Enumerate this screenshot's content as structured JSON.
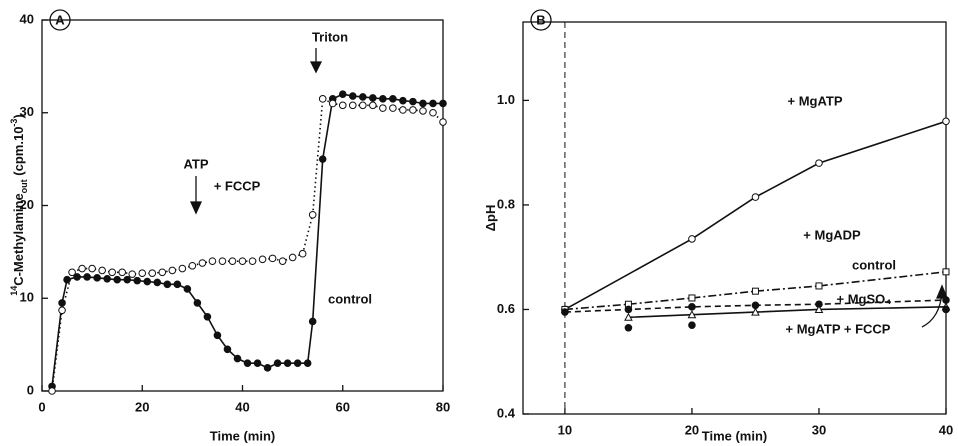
{
  "chart_data": [
    {
      "type": "line",
      "panel": "A",
      "ylabel": [
        "14",
        "C-Methylamine",
        "out",
        " (cpm.10",
        "-3",
        ")"
      ],
      "ylabel_shift": [
        "super",
        "normal",
        "sub",
        "normal",
        "super",
        "normal"
      ],
      "xlabel": "Time (min)",
      "xlim": [
        0,
        80
      ],
      "xticks": [
        0,
        20,
        40,
        60,
        80
      ],
      "ylim": [
        0,
        40
      ],
      "yticks": [
        0,
        10,
        20,
        30,
        40
      ],
      "annotations": [
        "Triton",
        "ATP",
        "+ FCCP",
        "control"
      ],
      "series": [
        {
          "marker": "filled-circle",
          "line": "solid",
          "color": "#111",
          "x": [
            2,
            4,
            5,
            7,
            9,
            11,
            13,
            15,
            17,
            19,
            21,
            23,
            25,
            27,
            29,
            31,
            33,
            35,
            37,
            39,
            41,
            43,
            45,
            47,
            49,
            51,
            53,
            54,
            56,
            58,
            60,
            62,
            64,
            66,
            68,
            70,
            72,
            74,
            76,
            78,
            80
          ],
          "values": [
            0.5,
            9.5,
            12,
            12.3,
            12.3,
            12.2,
            12.1,
            12,
            12,
            11.9,
            11.8,
            11.7,
            11.5,
            11.5,
            11,
            9.5,
            8,
            6,
            4.5,
            3.5,
            3,
            3,
            2.5,
            3,
            3,
            3,
            3,
            7.5,
            25,
            31.5,
            32,
            31.8,
            31.7,
            31.6,
            31.5,
            31.5,
            31.3,
            31.2,
            31,
            31,
            31
          ]
        },
        {
          "marker": "open-circle",
          "line": "dotted",
          "color": "#111",
          "x": [
            2,
            4,
            6,
            8,
            10,
            12,
            14,
            16,
            18,
            20,
            22,
            24,
            26,
            28,
            30,
            32,
            34,
            36,
            38,
            40,
            42,
            44,
            46,
            48,
            50,
            52,
            54,
            56,
            58,
            60,
            62,
            64,
            66,
            68,
            70,
            72,
            74,
            76,
            78,
            80
          ],
          "values": [
            0,
            8.7,
            12.8,
            13.2,
            13.2,
            13,
            12.8,
            12.8,
            12.6,
            12.7,
            12.7,
            12.8,
            13,
            13.2,
            13.5,
            13.8,
            14,
            14,
            14,
            14,
            14,
            14.2,
            14.3,
            14,
            14.4,
            14.8,
            19,
            31.5,
            31,
            30.8,
            30.8,
            30.8,
            30.8,
            30.5,
            30.5,
            30.3,
            30.3,
            30.2,
            30,
            29
          ]
        }
      ]
    },
    {
      "type": "line",
      "panel": "B",
      "ylabel": [
        "ΔpH"
      ],
      "ylabel_shift": [
        "normal"
      ],
      "xlabel": "Time (min)",
      "xlim": [
        6.7,
        40
      ],
      "xticks": [
        10,
        20,
        30,
        40
      ],
      "ylim": [
        0.4,
        1.15
      ],
      "yticks": [
        0.4,
        0.6,
        0.8,
        {
          "value": 1,
          "label": "1.0"
        }
      ],
      "vline": 10,
      "annotations": [],
      "series": [
        {
          "name": "+ MgATP",
          "marker": "open-circle",
          "line": "solid",
          "color": "#111",
          "x": [
            10,
            20,
            25,
            30,
            40
          ],
          "values": [
            0.6,
            0.735,
            0.815,
            0.88,
            0.96
          ]
        },
        {
          "name": "+ MgADP",
          "marker": "open-square",
          "line": "dashdot",
          "color": "#111",
          "x": [
            10,
            15,
            20,
            25,
            30,
            40
          ],
          "values": [
            0.6,
            0.61,
            0.622,
            0.635,
            0.645,
            0.672
          ]
        },
        {
          "name": "control",
          "marker": "filled-circle",
          "line": "dashed",
          "color": "#111",
          "x": [
            10,
            15,
            20,
            25,
            30,
            40
          ],
          "values": [
            0.595,
            0.6,
            0.605,
            0.608,
            0.61,
            0.618
          ]
        },
        {
          "name": "+ MgSO₄",
          "marker": "open-triangle",
          "line": "solid",
          "color": "#111",
          "x": [
            15,
            20,
            25,
            30,
            40
          ],
          "values": [
            0.585,
            0.59,
            0.595,
            0.6,
            0.605
          ]
        },
        {
          "name": "+ MgATP + FCCP",
          "marker": "filled-circle",
          "line": "none",
          "color": "#111",
          "x": [
            15,
            20,
            40
          ],
          "values": [
            0.565,
            0.57,
            0.6
          ]
        }
      ]
    }
  ]
}
